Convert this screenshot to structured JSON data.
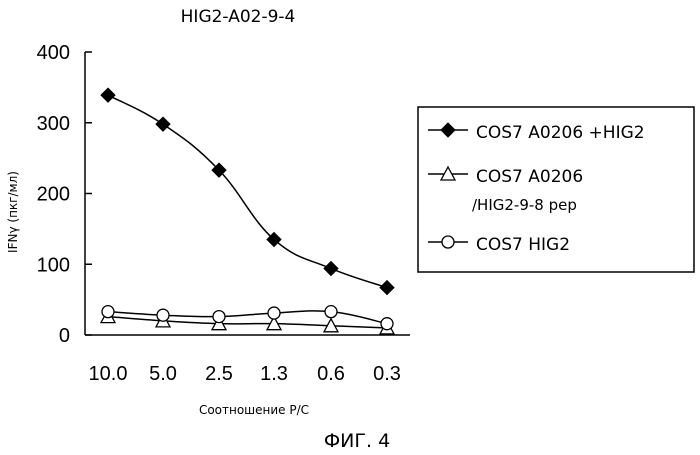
{
  "figure": {
    "caption": "ФИГ. 4"
  },
  "chart_data": {
    "type": "line",
    "title": "HIG2-A02-9-4",
    "xlabel": "Соотношение Р/С",
    "ylabel": "IFNγ (пкг/мл)",
    "ylim": [
      0,
      400
    ],
    "yticks": [
      "0",
      "100",
      "200",
      "300",
      "400"
    ],
    "categories": [
      "10.0",
      "5.0",
      "2.5",
      "1.3",
      "0.6",
      "0.3"
    ],
    "legend_position": "right",
    "series": [
      {
        "name": "COS7 A0206 +HIG2",
        "legend_lines": [
          "COS7 A0206 +HIG2"
        ],
        "marker": "filled-diamond",
        "values": [
          339,
          298,
          233,
          135,
          94,
          67
        ]
      },
      {
        "name": "COS7 A0206 /HIG2-9-8 pep",
        "legend_lines": [
          "COS7 A0206",
          "/HIG2-9-8 pep"
        ],
        "marker": "open-triangle",
        "values": [
          26,
          20,
          16,
          16,
          13,
          10
        ]
      },
      {
        "name": "COS7 HIG2",
        "legend_lines": [
          "COS7 HIG2"
        ],
        "marker": "open-circle",
        "values": [
          33,
          28,
          26,
          31,
          33,
          16
        ]
      }
    ]
  }
}
